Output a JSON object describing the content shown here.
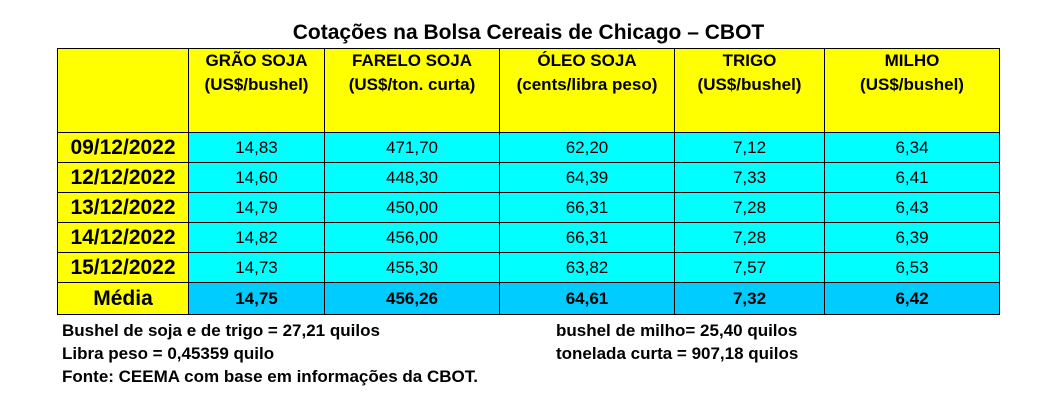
{
  "title": "Cotações na Bolsa Cereais de Chicago – CBOT",
  "columns": [
    {
      "name": "GRÃO SOJA",
      "unit": "(US$/bushel)"
    },
    {
      "name": "FARELO SOJA",
      "unit": "(US$/ton. curta)"
    },
    {
      "name": "ÓLEO SOJA",
      "unit": "(cents/libra peso)"
    },
    {
      "name": "TRIGO",
      "unit": "(US$/bushel)"
    },
    {
      "name": "MILHO",
      "unit": "(US$/bushel)"
    }
  ],
  "rows": [
    {
      "date": "09/12/2022",
      "values": [
        "14,83",
        "471,70",
        "62,20",
        "7,12",
        "6,34"
      ]
    },
    {
      "date": "12/12/2022",
      "values": [
        "14,60",
        "448,30",
        "64,39",
        "7,33",
        "6,41"
      ]
    },
    {
      "date": "13/12/2022",
      "values": [
        "14,79",
        "450,00",
        "66,31",
        "7,28",
        "6,43"
      ]
    },
    {
      "date": "14/12/2022",
      "values": [
        "14,82",
        "456,00",
        "66,31",
        "7,28",
        "6,39"
      ]
    },
    {
      "date": "15/12/2022",
      "values": [
        "14,73",
        "455,30",
        "63,82",
        "7,57",
        "6,53"
      ]
    }
  ],
  "average": {
    "label": "Média",
    "values": [
      "14,75",
      "456,26",
      "64,61",
      "7,32",
      "6,42"
    ]
  },
  "notes": {
    "bushel_soja_trigo": "Bushel de soja e de trigo = 27,21 quilos",
    "bushel_milho": "bushel de milho= 25,40 quilos",
    "libra_peso": "Libra peso = 0,45359 quilo",
    "tonelada_curta": "tonelada curta = 907,18 quilos",
    "fonte": "Fonte: CEEMA com base em informações da CBOT."
  },
  "colors": {
    "header": "#ffff00",
    "cell": "#00ffff",
    "average": "#00ccff"
  }
}
